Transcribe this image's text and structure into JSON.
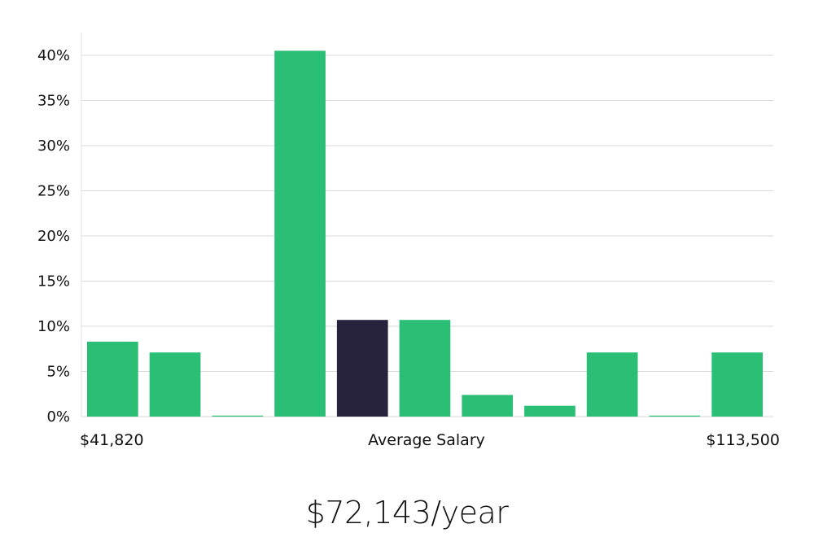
{
  "chart_data": {
    "type": "bar",
    "ylim": [
      0,
      42.5
    ],
    "y_ticks": [
      "0%",
      "5%",
      "10%",
      "15%",
      "20%",
      "25%",
      "30%",
      "35%",
      "40%"
    ],
    "y_tick_values": [
      0,
      5,
      10,
      15,
      20,
      25,
      30,
      35,
      40
    ],
    "values": [
      8.3,
      7.1,
      0.05,
      40.5,
      10.7,
      10.7,
      2.4,
      1.2,
      7.1,
      0.05,
      7.1
    ],
    "highlight_index": 4,
    "x_min_label": "$41,820",
    "x_center_label": "Average Salary",
    "x_max_label": "$113,500",
    "grid": true,
    "colors": {
      "bar": "#2bbf76",
      "highlight": "#27233f",
      "grid": "#d9d9d9",
      "axis": "#e0e0e0"
    }
  },
  "headline": "$72,143/year"
}
